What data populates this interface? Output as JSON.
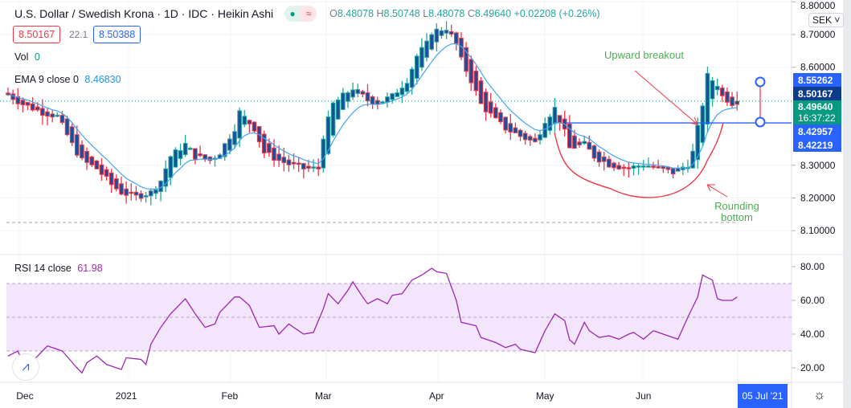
{
  "header": {
    "title": "U.S. Dollar / Swedish Krona · 1D · IDC · Heikin Ashi",
    "open_label": "O",
    "open": "8.48078",
    "high_label": "H",
    "high": "8.50748",
    "low_label": "L",
    "low": "8.48078",
    "close_label": "C",
    "close": "8.49640",
    "change": "+0.02208 (+0.26%)",
    "sell_price": "8.50167",
    "spread": "22.1",
    "buy_price": "8.50388",
    "status_icon": "market-open-dot",
    "wave_icon": "≈"
  },
  "indicators": {
    "vol_label": "Vol",
    "vol_value": "0",
    "ema_label": "EMA 9 close 0",
    "ema_value": "8.46830",
    "rsi_label": "RSI 14 close",
    "rsi_value": "61.98"
  },
  "currency": "SEK",
  "price_labels": [
    {
      "text": "8.55262",
      "color": "#2962ff"
    },
    {
      "text": "8.50167",
      "color": "#0d3c8c"
    },
    {
      "text": "8.49640",
      "sub": "16:37:22",
      "color": "#089981"
    },
    {
      "text": "8.42957",
      "color": "#2962ff"
    },
    {
      "text": "8.42219",
      "color": "#2962ff"
    }
  ],
  "annotations": {
    "breakout": "Upward breakout",
    "rounding": "Rounding bottom"
  },
  "colors": {
    "body": "#1b4f9c",
    "up": "#26a69a",
    "down": "#f23645",
    "ema": "#42a5f5",
    "rsi": "#9c27b0",
    "band": "#f3e5fc",
    "annotation": "#f23645"
  },
  "chart_data": {
    "type": "candlestick",
    "title": "U.S. Dollar / Swedish Krona · 1D · IDC · Heikin Ashi",
    "ylim": [
      8.08,
      8.81
    ],
    "yticks": [
      "8.80000",
      "8.70000",
      "8.60000",
      "8.30000",
      "8.20000",
      "8.10000"
    ],
    "ytick_values": [
      8.8,
      8.7,
      8.6,
      8.3,
      8.2,
      8.1
    ],
    "xticks": [
      "Dec",
      "2021",
      "Feb",
      "Mar",
      "Apr",
      "May",
      "Jun"
    ],
    "xtick_index": [
      2,
      24,
      45,
      64,
      87,
      109,
      129
    ],
    "current_date": "05 Jul '21",
    "close_keypoints": [
      [
        0,
        8.516
      ],
      [
        3,
        8.487
      ],
      [
        7,
        8.462
      ],
      [
        10,
        8.45
      ],
      [
        13,
        8.364
      ],
      [
        15,
        8.315
      ],
      [
        18,
        8.29
      ],
      [
        21,
        8.241
      ],
      [
        23,
        8.217
      ],
      [
        26,
        8.204
      ],
      [
        29,
        8.217
      ],
      [
        31,
        8.253
      ],
      [
        33,
        8.327
      ],
      [
        36,
        8.364
      ],
      [
        38,
        8.327
      ],
      [
        41,
        8.315
      ],
      [
        43,
        8.339
      ],
      [
        46,
        8.413
      ],
      [
        47,
        8.462
      ],
      [
        50,
        8.413
      ],
      [
        52,
        8.339
      ],
      [
        55,
        8.315
      ],
      [
        57,
        8.303
      ],
      [
        60,
        8.29
      ],
      [
        63,
        8.29
      ],
      [
        64,
        8.389
      ],
      [
        66,
        8.487
      ],
      [
        69,
        8.524
      ],
      [
        70,
        8.536
      ],
      [
        73,
        8.499
      ],
      [
        75,
        8.491
      ],
      [
        78,
        8.511
      ],
      [
        81,
        8.56
      ],
      [
        83,
        8.634
      ],
      [
        85,
        8.671
      ],
      [
        86,
        8.708
      ],
      [
        89,
        8.72
      ],
      [
        91,
        8.671
      ],
      [
        92,
        8.622
      ],
      [
        94,
        8.56
      ],
      [
        96,
        8.487
      ],
      [
        99,
        8.438
      ],
      [
        101,
        8.413
      ],
      [
        104,
        8.389
      ],
      [
        107,
        8.369
      ],
      [
        109,
        8.438
      ],
      [
        111,
        8.474
      ],
      [
        113,
        8.401
      ],
      [
        114,
        8.352
      ],
      [
        117,
        8.364
      ],
      [
        119,
        8.327
      ],
      [
        122,
        8.303
      ],
      [
        126,
        8.29
      ],
      [
        129,
        8.303
      ],
      [
        132,
        8.29
      ],
      [
        135,
        8.278
      ],
      [
        138,
        8.303
      ],
      [
        139,
        8.339
      ],
      [
        141,
        8.487
      ],
      [
        142,
        8.573
      ],
      [
        144,
        8.548
      ],
      [
        145,
        8.511
      ],
      [
        147,
        8.491
      ],
      [
        148,
        8.4964
      ]
    ],
    "rsi": {
      "ylim": [
        12,
        86
      ],
      "yticks": [
        "80.00",
        "60.00",
        "40.00",
        "20.00"
      ],
      "ytick_values": [
        80,
        60,
        40,
        20
      ],
      "band": [
        30,
        70
      ],
      "keypoints": [
        [
          0,
          27
        ],
        [
          2,
          30
        ],
        [
          3,
          23
        ],
        [
          5,
          24
        ],
        [
          8,
          33
        ],
        [
          11,
          30
        ],
        [
          14,
          20
        ],
        [
          15,
          17
        ],
        [
          16,
          23
        ],
        [
          18,
          27
        ],
        [
          20,
          22
        ],
        [
          23,
          19
        ],
        [
          24,
          26
        ],
        [
          27,
          25
        ],
        [
          28,
          22
        ],
        [
          29,
          34
        ],
        [
          31,
          44
        ],
        [
          33,
          52
        ],
        [
          36,
          61
        ],
        [
          38,
          52
        ],
        [
          40,
          44
        ],
        [
          42,
          46
        ],
        [
          43,
          53
        ],
        [
          46,
          62
        ],
        [
          47,
          62
        ],
        [
          49,
          57
        ],
        [
          51,
          44
        ],
        [
          54,
          45
        ],
        [
          55,
          40
        ],
        [
          57,
          46
        ],
        [
          60,
          40
        ],
        [
          62,
          41
        ],
        [
          64,
          55
        ],
        [
          65,
          64
        ],
        [
          67,
          58
        ],
        [
          69,
          66
        ],
        [
          70,
          71
        ],
        [
          72,
          62
        ],
        [
          73,
          58
        ],
        [
          75,
          61
        ],
        [
          77,
          58
        ],
        [
          78,
          63
        ],
        [
          80,
          64
        ],
        [
          82,
          72
        ],
        [
          84,
          75
        ],
        [
          86,
          79
        ],
        [
          87,
          77
        ],
        [
          89,
          76
        ],
        [
          91,
          60
        ],
        [
          92,
          47
        ],
        [
          95,
          45
        ],
        [
          96,
          38
        ],
        [
          99,
          35
        ],
        [
          101,
          32
        ],
        [
          103,
          34
        ],
        [
          104,
          31
        ],
        [
          107,
          29
        ],
        [
          109,
          42
        ],
        [
          110,
          47
        ],
        [
          111,
          52
        ],
        [
          113,
          48
        ],
        [
          113.5,
          38
        ],
        [
          115,
          34
        ],
        [
          117,
          47
        ],
        [
          118,
          42
        ],
        [
          120,
          38
        ],
        [
          122,
          39
        ],
        [
          124,
          37
        ],
        [
          126,
          40
        ],
        [
          127,
          41
        ],
        [
          129,
          37
        ],
        [
          131,
          42
        ],
        [
          132,
          41
        ],
        [
          135,
          38
        ],
        [
          136,
          37
        ],
        [
          138,
          50
        ],
        [
          140,
          62
        ],
        [
          141,
          75
        ],
        [
          143,
          72
        ],
        [
          144,
          61
        ],
        [
          145,
          60
        ],
        [
          147,
          60
        ],
        [
          148,
          62
        ]
      ]
    }
  }
}
